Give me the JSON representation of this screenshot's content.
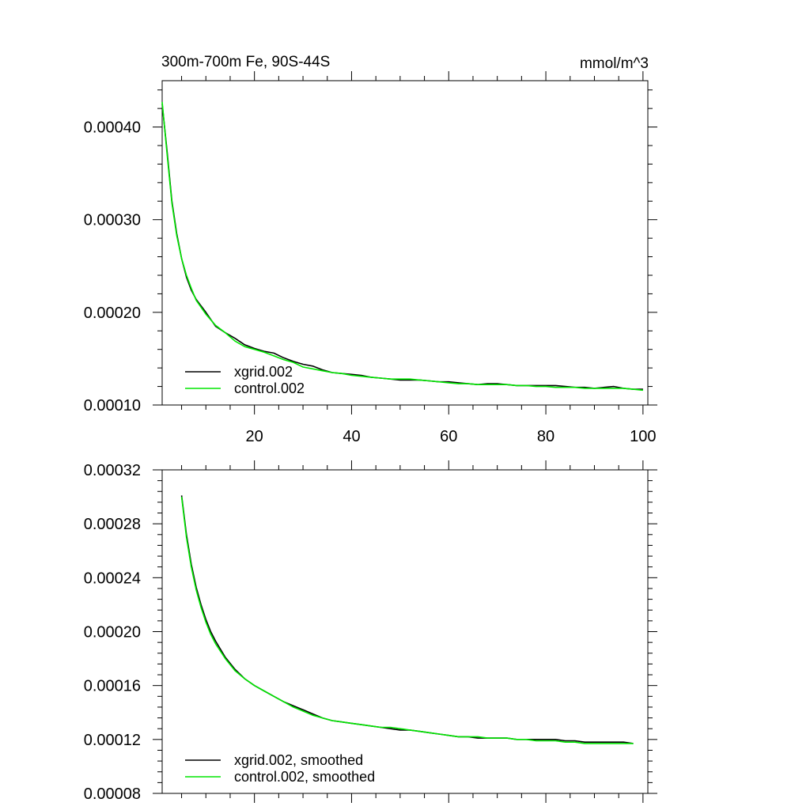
{
  "chart_data": [
    {
      "type": "line",
      "title_left": "300m-700m Fe, 90S-44S",
      "title_right": "mmol/m^3",
      "xlim": [
        1,
        101
      ],
      "ylim": [
        0.0001,
        0.00045
      ],
      "xticks": [
        20,
        40,
        60,
        80,
        100
      ],
      "xtick_labels": [
        "20",
        "40",
        "60",
        "80",
        "100"
      ],
      "yticks": [
        0.0001,
        0.0002,
        0.0003,
        0.0004
      ],
      "ytick_labels": [
        "0.00010",
        "0.00020",
        "0.00030",
        "0.00040"
      ],
      "legend_position": "bottom-left",
      "series": [
        {
          "name": "xgrid.002",
          "color": "#000000",
          "x": [
            1,
            2,
            3,
            4,
            5,
            6,
            7,
            8,
            10,
            12,
            14,
            16,
            18,
            20,
            22,
            24,
            26,
            28,
            30,
            32,
            34,
            36,
            38,
            40,
            42,
            44,
            46,
            48,
            50,
            52,
            54,
            56,
            58,
            60,
            62,
            64,
            66,
            68,
            70,
            72,
            74,
            76,
            78,
            80,
            82,
            84,
            86,
            88,
            90,
            92,
            94,
            96,
            98,
            100
          ],
          "y": [
            0.000425,
            0.000375,
            0.00032,
            0.000285,
            0.000258,
            0.000238,
            0.000224,
            0.000214,
            0.0002,
            0.000185,
            0.000178,
            0.000172,
            0.000165,
            0.000161,
            0.000158,
            0.000156,
            0.000151,
            0.000147,
            0.000144,
            0.000142,
            0.000138,
            0.000135,
            0.000134,
            0.000133,
            0.000132,
            0.00013,
            0.000129,
            0.000128,
            0.000127,
            0.000127,
            0.000127,
            0.000126,
            0.000125,
            0.000125,
            0.000124,
            0.000123,
            0.000122,
            0.000123,
            0.000123,
            0.000122,
            0.000121,
            0.000121,
            0.000121,
            0.000121,
            0.000121,
            0.00012,
            0.000119,
            0.000119,
            0.000118,
            0.000119,
            0.00012,
            0.000118,
            0.000117,
            0.000117
          ]
        },
        {
          "name": "control.002",
          "color": "#00e600",
          "x": [
            1,
            2,
            3,
            4,
            5,
            6,
            7,
            8,
            10,
            12,
            14,
            16,
            18,
            20,
            22,
            24,
            26,
            28,
            30,
            32,
            34,
            36,
            38,
            40,
            42,
            44,
            46,
            48,
            50,
            52,
            54,
            56,
            58,
            60,
            62,
            64,
            66,
            68,
            70,
            72,
            74,
            76,
            78,
            80,
            82,
            84,
            86,
            88,
            90,
            92,
            94,
            96,
            98,
            100
          ],
          "y": [
            0.000427,
            0.000372,
            0.000318,
            0.000283,
            0.000258,
            0.00024,
            0.000226,
            0.000213,
            0.000198,
            0.000186,
            0.000178,
            0.000169,
            0.000163,
            0.00016,
            0.000157,
            0.000153,
            0.000149,
            0.000146,
            0.000141,
            0.000139,
            0.000137,
            0.000135,
            0.000134,
            0.000132,
            0.000131,
            0.00013,
            0.000129,
            0.000128,
            0.000128,
            0.000128,
            0.000127,
            0.000126,
            0.000125,
            0.000124,
            0.000123,
            0.000123,
            0.000122,
            0.000122,
            0.000122,
            0.000122,
            0.000121,
            0.000121,
            0.00012,
            0.00012,
            0.000119,
            0.000119,
            0.000119,
            0.000118,
            0.000118,
            0.000118,
            0.000118,
            0.000118,
            0.000117,
            0.000116
          ]
        }
      ]
    },
    {
      "type": "line",
      "xlim": [
        1,
        101
      ],
      "ylim": [
        8e-05,
        0.00032
      ],
      "xticks": [
        20,
        40,
        60,
        80,
        100
      ],
      "xtick_labels": [],
      "yticks": [
        8e-05,
        0.00012,
        0.00016,
        0.0002,
        0.00024,
        0.00028,
        0.00032
      ],
      "ytick_labels": [
        "0.00008",
        "0.00012",
        "0.00016",
        "0.00020",
        "0.00024",
        "0.00028",
        "0.00032"
      ],
      "legend_position": "bottom-left",
      "series": [
        {
          "name": "xgrid.002, smoothed",
          "color": "#000000",
          "x": [
            5,
            6,
            7,
            8,
            9,
            10,
            11,
            12,
            14,
            16,
            18,
            20,
            22,
            24,
            26,
            28,
            30,
            32,
            34,
            36,
            38,
            40,
            42,
            44,
            46,
            48,
            50,
            52,
            54,
            56,
            58,
            60,
            62,
            64,
            66,
            68,
            70,
            72,
            74,
            76,
            78,
            80,
            82,
            84,
            86,
            88,
            90,
            92,
            94,
            96,
            98
          ],
          "y": [
            0.000301,
            0.000272,
            0.00025,
            0.000233,
            0.00022,
            0.000209,
            0.0002,
            0.000193,
            0.000181,
            0.000172,
            0.000165,
            0.00016,
            0.000156,
            0.000152,
            0.000148,
            0.000145,
            0.000142,
            0.000139,
            0.000136,
            0.000134,
            0.000133,
            0.000132,
            0.000131,
            0.00013,
            0.000129,
            0.000128,
            0.000127,
            0.000127,
            0.000126,
            0.000125,
            0.000124,
            0.000123,
            0.000122,
            0.000122,
            0.000121,
            0.000121,
            0.000121,
            0.000121,
            0.00012,
            0.00012,
            0.00012,
            0.00012,
            0.00012,
            0.000119,
            0.000119,
            0.000118,
            0.000118,
            0.000118,
            0.000118,
            0.000118,
            0.000117
          ]
        },
        {
          "name": "control.002, smoothed",
          "color": "#00e600",
          "x": [
            5,
            6,
            7,
            8,
            9,
            10,
            11,
            12,
            14,
            16,
            18,
            20,
            22,
            24,
            26,
            28,
            30,
            32,
            34,
            36,
            38,
            40,
            42,
            44,
            46,
            48,
            50,
            52,
            54,
            56,
            58,
            60,
            62,
            64,
            66,
            68,
            70,
            72,
            74,
            76,
            78,
            80,
            82,
            84,
            86,
            88,
            90,
            92,
            94,
            96,
            98
          ],
          "y": [
            0.0003,
            0.00027,
            0.000248,
            0.000231,
            0.000218,
            0.000207,
            0.000198,
            0.000191,
            0.00018,
            0.000171,
            0.000165,
            0.00016,
            0.000156,
            0.000152,
            0.000148,
            0.000144,
            0.000141,
            0.000138,
            0.000136,
            0.000134,
            0.000133,
            0.000132,
            0.000131,
            0.00013,
            0.000129,
            0.000129,
            0.000128,
            0.000127,
            0.000126,
            0.000125,
            0.000124,
            0.000123,
            0.000122,
            0.000122,
            0.000122,
            0.000121,
            0.000121,
            0.000121,
            0.00012,
            0.00012,
            0.000119,
            0.000119,
            0.000119,
            0.000118,
            0.000118,
            0.000117,
            0.000117,
            0.000117,
            0.000117,
            0.000117,
            0.000117
          ]
        }
      ]
    }
  ]
}
